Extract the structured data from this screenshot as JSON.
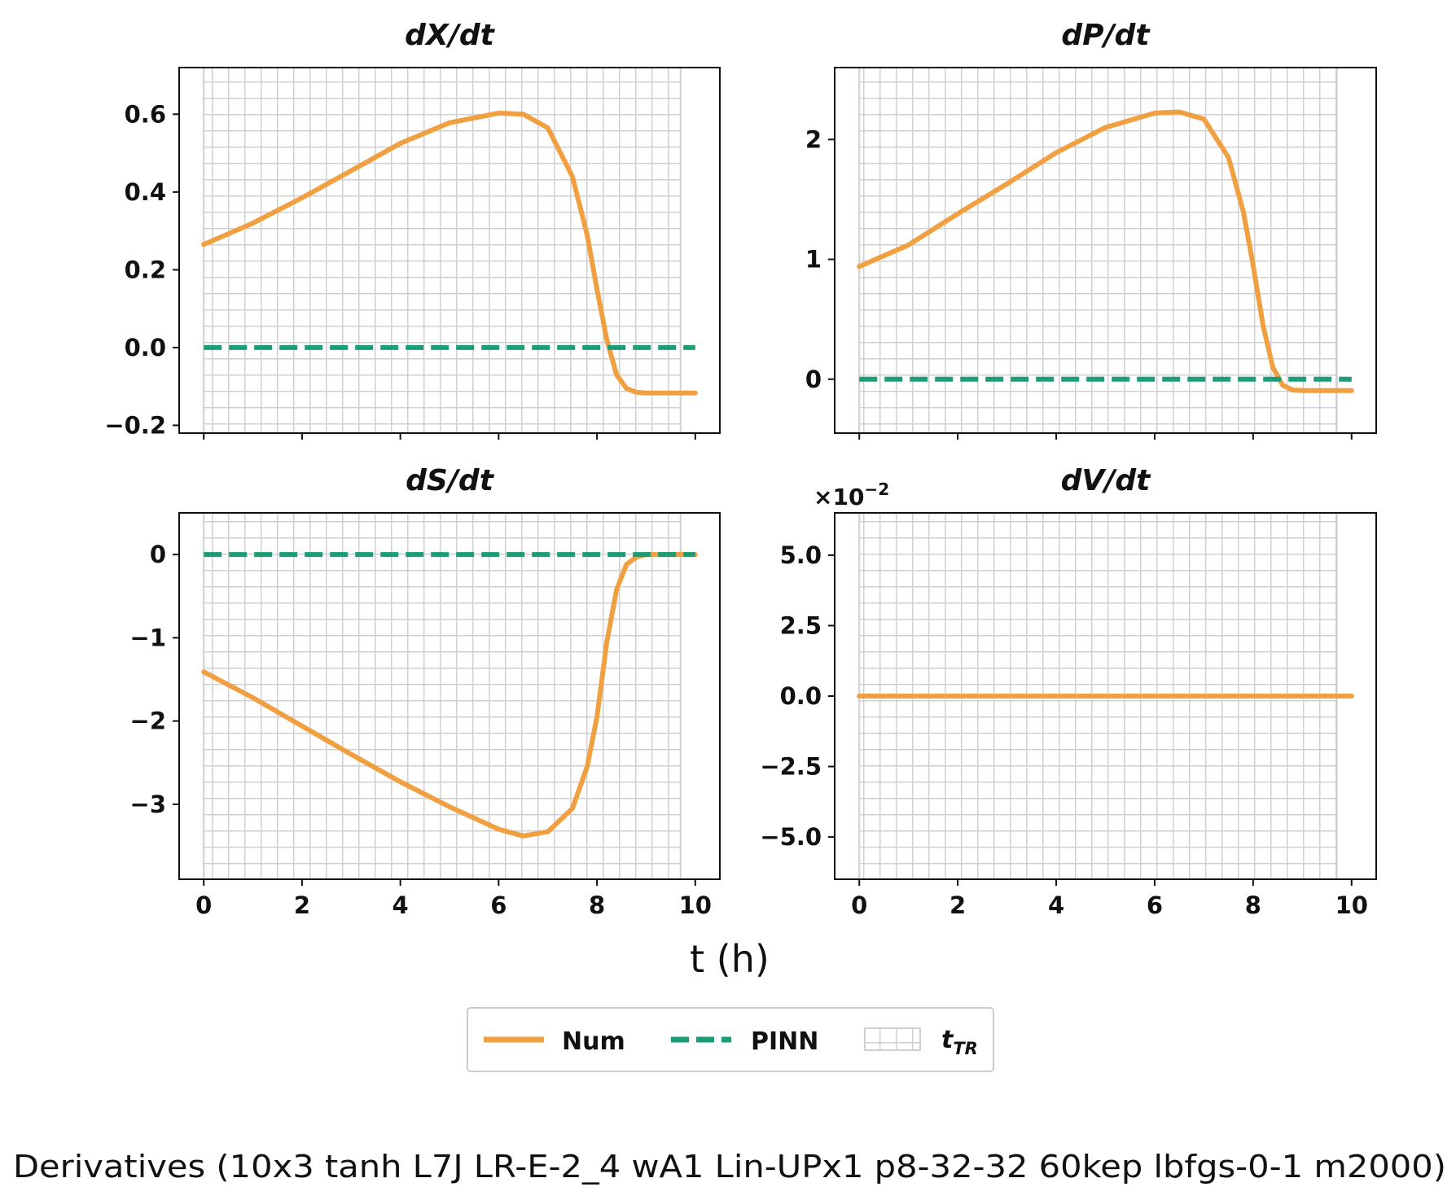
{
  "figure": {
    "suptitle": "Derivatives (10x3 tanh L7J LR-E-2_4 wA1 Lin-UPx1 p8-32-32 60kep lbfgs-0-1 m2000)",
    "xlabel": "t (h)"
  },
  "legend": {
    "entries": [
      {
        "label": "Num",
        "kind": "solid",
        "color": "#F0A041"
      },
      {
        "label": "PINN",
        "kind": "dashed",
        "color": "#1B9E77"
      },
      {
        "label": "t",
        "sub": "TR",
        "kind": "hatch",
        "color": "#d0d0d0"
      }
    ],
    "placement": "bottom-center"
  },
  "colors": {
    "num": "#F0A041",
    "pinn": "#1B9E77",
    "train_region": "#d0d0d0"
  },
  "chart_data": [
    {
      "type": "line",
      "title": "dX/dt",
      "xlim": [
        -0.5,
        10.5
      ],
      "ylim": [
        -0.22,
        0.72
      ],
      "xticks": [
        0,
        2,
        4,
        6,
        8,
        10
      ],
      "xtick_labels": [
        "0",
        "2",
        "4",
        "6",
        "8",
        "10"
      ],
      "show_xticklabels": false,
      "yticks": [
        -0.2,
        0.0,
        0.2,
        0.4,
        0.6
      ],
      "ytick_labels": [
        "−0.2",
        "0.0",
        "0.2",
        "0.4",
        "0.6"
      ],
      "training_region": [
        0,
        9.7
      ],
      "series": [
        {
          "name": "Num",
          "style": "solid",
          "x": [
            0,
            1,
            2,
            3,
            4,
            5,
            6,
            6.5,
            7,
            7.5,
            7.8,
            8,
            8.2,
            8.4,
            8.6,
            8.8,
            9,
            9.5,
            10
          ],
          "y": [
            0.265,
            0.32,
            0.385,
            0.455,
            0.525,
            0.578,
            0.603,
            0.6,
            0.565,
            0.44,
            0.29,
            0.15,
            0.02,
            -0.07,
            -0.105,
            -0.115,
            -0.117,
            -0.117,
            -0.117
          ]
        },
        {
          "name": "PINN",
          "style": "dashed",
          "x": [
            0,
            10
          ],
          "y": [
            0,
            0
          ]
        }
      ]
    },
    {
      "type": "line",
      "title": "dP/dt",
      "xlim": [
        -0.5,
        10.5
      ],
      "ylim": [
        -0.45,
        2.6
      ],
      "xticks": [
        0,
        2,
        4,
        6,
        8,
        10
      ],
      "xtick_labels": [
        "0",
        "2",
        "4",
        "6",
        "8",
        "10"
      ],
      "show_xticklabels": false,
      "yticks": [
        0,
        1,
        2
      ],
      "ytick_labels": [
        "0",
        "1",
        "2"
      ],
      "training_region": [
        0,
        9.7
      ],
      "series": [
        {
          "name": "Num",
          "style": "solid",
          "x": [
            0,
            1,
            2,
            3,
            4,
            5,
            6,
            6.5,
            7,
            7.5,
            7.8,
            8,
            8.2,
            8.4,
            8.6,
            8.8,
            9,
            9.5,
            10
          ],
          "y": [
            0.94,
            1.12,
            1.38,
            1.63,
            1.89,
            2.1,
            2.22,
            2.23,
            2.17,
            1.85,
            1.4,
            0.95,
            0.45,
            0.1,
            -0.05,
            -0.09,
            -0.095,
            -0.095,
            -0.095
          ]
        },
        {
          "name": "PINN",
          "style": "dashed",
          "x": [
            0,
            10
          ],
          "y": [
            0,
            0
          ]
        }
      ]
    },
    {
      "type": "line",
      "title": "dS/dt",
      "xlim": [
        -0.5,
        10.5
      ],
      "ylim": [
        -3.9,
        0.5
      ],
      "xticks": [
        0,
        2,
        4,
        6,
        8,
        10
      ],
      "xtick_labels": [
        "0",
        "2",
        "4",
        "6",
        "8",
        "10"
      ],
      "show_xticklabels": true,
      "yticks": [
        -3,
        -2,
        -1,
        0
      ],
      "ytick_labels": [
        "−3",
        "−2",
        "−1",
        "0"
      ],
      "training_region": [
        0,
        9.7
      ],
      "series": [
        {
          "name": "Num",
          "style": "solid",
          "x": [
            0,
            1,
            2,
            3,
            4,
            5,
            6,
            6.5,
            7,
            7.5,
            7.8,
            8,
            8.2,
            8.4,
            8.6,
            8.8,
            9,
            9.5,
            10
          ],
          "y": [
            -1.41,
            -1.72,
            -2.06,
            -2.4,
            -2.73,
            -3.03,
            -3.3,
            -3.38,
            -3.33,
            -3.05,
            -2.55,
            -1.95,
            -1.05,
            -0.42,
            -0.12,
            -0.03,
            0.0,
            0.0,
            0.0
          ]
        },
        {
          "name": "PINN",
          "style": "dashed",
          "x": [
            0,
            10
          ],
          "y": [
            0,
            0
          ]
        }
      ]
    },
    {
      "type": "line",
      "title": "dV/dt",
      "xlim": [
        -0.5,
        10.5
      ],
      "ylim": [
        -0.065,
        0.065
      ],
      "xticks": [
        0,
        2,
        4,
        6,
        8,
        10
      ],
      "xtick_labels": [
        "0",
        "2",
        "4",
        "6",
        "8",
        "10"
      ],
      "show_xticklabels": true,
      "yticks": [
        -0.05,
        -0.025,
        0.0,
        0.025,
        0.05
      ],
      "ytick_labels": [
        "−5.0",
        "−2.5",
        "0.0",
        "2.5",
        "5.0"
      ],
      "offset_label": "×10",
      "offset_exponent": "−2",
      "training_region": [
        0,
        9.7
      ],
      "series": [
        {
          "name": "PINN",
          "style": "dashed",
          "x": [
            0,
            10
          ],
          "y": [
            0,
            0
          ]
        },
        {
          "name": "Num",
          "style": "solid",
          "x": [
            0,
            10
          ],
          "y": [
            0,
            0
          ]
        }
      ]
    }
  ]
}
